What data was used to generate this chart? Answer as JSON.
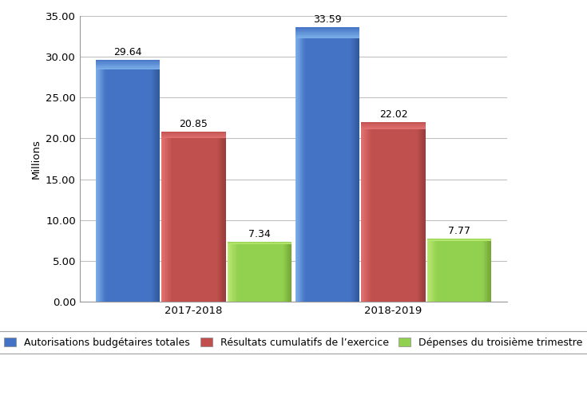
{
  "groups": [
    "2017-2018",
    "2018-2019"
  ],
  "series": {
    "Autorisations budgétaires totales": [
      29.64,
      33.59
    ],
    "Résultats cumulatifs de l’exercice": [
      20.85,
      22.02
    ],
    "Dépenses du troisième trimestre": [
      7.34,
      7.77
    ]
  },
  "colors_main": [
    "#4472C4",
    "#C0504D",
    "#92D050"
  ],
  "colors_dark": [
    "#2E5694",
    "#943B3B",
    "#6FA031"
  ],
  "colors_light": [
    "#7AAEE8",
    "#E07070",
    "#B8E870"
  ],
  "ylabel": "Millions",
  "ylim": [
    0,
    35
  ],
  "yticks": [
    0.0,
    5.0,
    10.0,
    15.0,
    20.0,
    25.0,
    30.0,
    35.0
  ],
  "ytick_labels": [
    "0.00",
    "5.00",
    "10.00",
    "15.00",
    "20.00",
    "25.00",
    "30.00",
    "35.00"
  ],
  "bar_width": 0.18,
  "group_centers": [
    0.32,
    0.88
  ],
  "xlim": [
    0.0,
    1.2
  ],
  "xtick_positions": [
    0.32,
    0.88
  ],
  "legend_labels": [
    "Autorisations budgétaires totales",
    "Résultats cumulatifs de l’exercice",
    "Dépenses du troisième trimestre"
  ],
  "value_labels": {
    "Autorisations budgétaires totales": [
      "29.64",
      "33.59"
    ],
    "Résultats cumulatifs de l’exercice": [
      "20.85",
      "22.02"
    ],
    "Dépenses du troisième trimestre": [
      "7.34",
      "7.77"
    ]
  },
  "background_color": "#FFFFFF",
  "grid_color": "#C0C0C0",
  "label_fontsize": 9.5,
  "tick_fontsize": 9.5,
  "value_fontsize": 9,
  "legend_fontsize": 9
}
